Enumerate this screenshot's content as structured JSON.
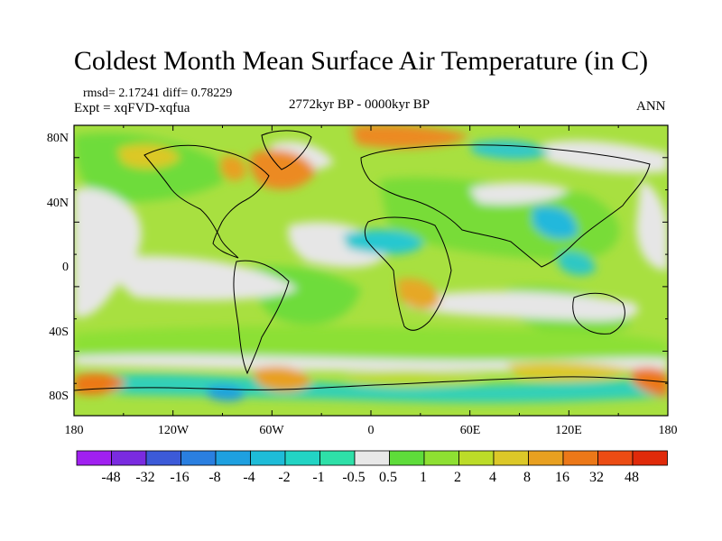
{
  "title": "Coldest Month Mean Surface Air Temperature (in C)",
  "stats": "rmsd= 2.17241 diff= 0.78229",
  "experiment": "Expt = xqFVD-xqfua",
  "period": "2772kyr BP - 0000kyr BP",
  "season": "ANN",
  "lat_labels": [
    "80N",
    "40N",
    "0",
    "40S",
    "80S"
  ],
  "lon_labels": [
    "180",
    "120W",
    "60W",
    "0",
    "60E",
    "120E",
    "180"
  ],
  "colorbar": {
    "labels": [
      "-48",
      "-32",
      "-16",
      "-8",
      "-4",
      "-2",
      "-1",
      "-0.5",
      "0.5",
      "1",
      "2",
      "4",
      "8",
      "16",
      "32",
      "48"
    ],
    "colors": [
      "#a020f0",
      "#7a2be0",
      "#3c5ad8",
      "#2a7fe0",
      "#1ea0e0",
      "#1ebcd8",
      "#22d4c4",
      "#2ee0a8",
      "#e8e8e8",
      "#5edc3a",
      "#8ee032",
      "#bcdc28",
      "#dcc828",
      "#e8a020",
      "#ec7818",
      "#ec4c14",
      "#e02a0a"
    ]
  }
}
